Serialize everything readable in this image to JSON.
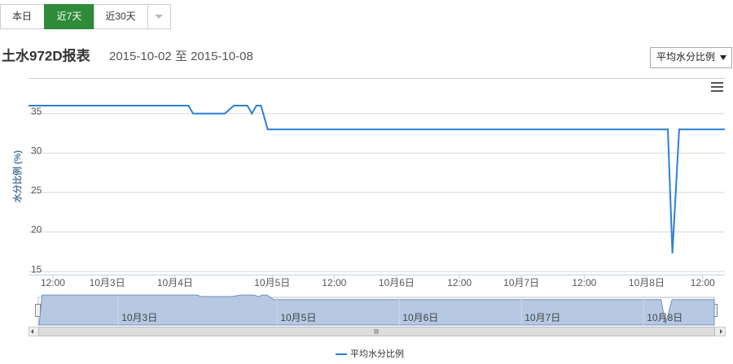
{
  "tabs": [
    "本日",
    "近7天",
    "近30天"
  ],
  "header": {
    "title": "土水972D报表",
    "date_range": "2015-10-02 至 2015-10-08",
    "select": "平均水分比例"
  },
  "chart_data": {
    "type": "line",
    "y_label": "水分比例 (%)",
    "x": [
      6.6,
      42,
      43,
      50,
      52,
      55,
      56,
      57,
      58,
      59.5,
      148,
      149,
      150.5,
      160.6
    ],
    "series": [
      {
        "name": "平均水分比例",
        "color": "#2f7ed8",
        "values": [
          36,
          36,
          35,
          35,
          36,
          36,
          35,
          36,
          36,
          33,
          33,
          17.3,
          33,
          33
        ]
      }
    ],
    "xlim": [
      6.6,
      160.6
    ],
    "xticks": [
      {
        "value": 12,
        "label": "12:00"
      },
      {
        "value": 24,
        "label": "10月3日"
      },
      {
        "value": 39,
        "label": "10月4日"
      },
      {
        "value": 60.5,
        "label": "10月5日"
      },
      {
        "value": 74.2,
        "label": "12:00"
      },
      {
        "value": 88,
        "label": "10月6日"
      },
      {
        "value": 101.9,
        "label": "12:00"
      },
      {
        "value": 115.6,
        "label": "10月7日"
      },
      {
        "value": 129.5,
        "label": "12:00"
      },
      {
        "value": 143.3,
        "label": "10月8日"
      },
      {
        "value": 155.7,
        "label": "12:00"
      }
    ],
    "ylim": [
      14.6,
      39.5
    ],
    "yticks": [
      15,
      20,
      25,
      30,
      35
    ],
    "grid": true,
    "navigator_xlim": [
      3.5,
      160.7
    ],
    "navigator_xticks": [
      {
        "value": 24,
        "label": "10月3日"
      },
      {
        "value": 60.3,
        "label": "10月5日"
      },
      {
        "value": 88.2,
        "label": "10月6日"
      },
      {
        "value": 116.1,
        "label": "10月7日"
      },
      {
        "value": 144,
        "label": "10月8日"
      }
    ]
  }
}
